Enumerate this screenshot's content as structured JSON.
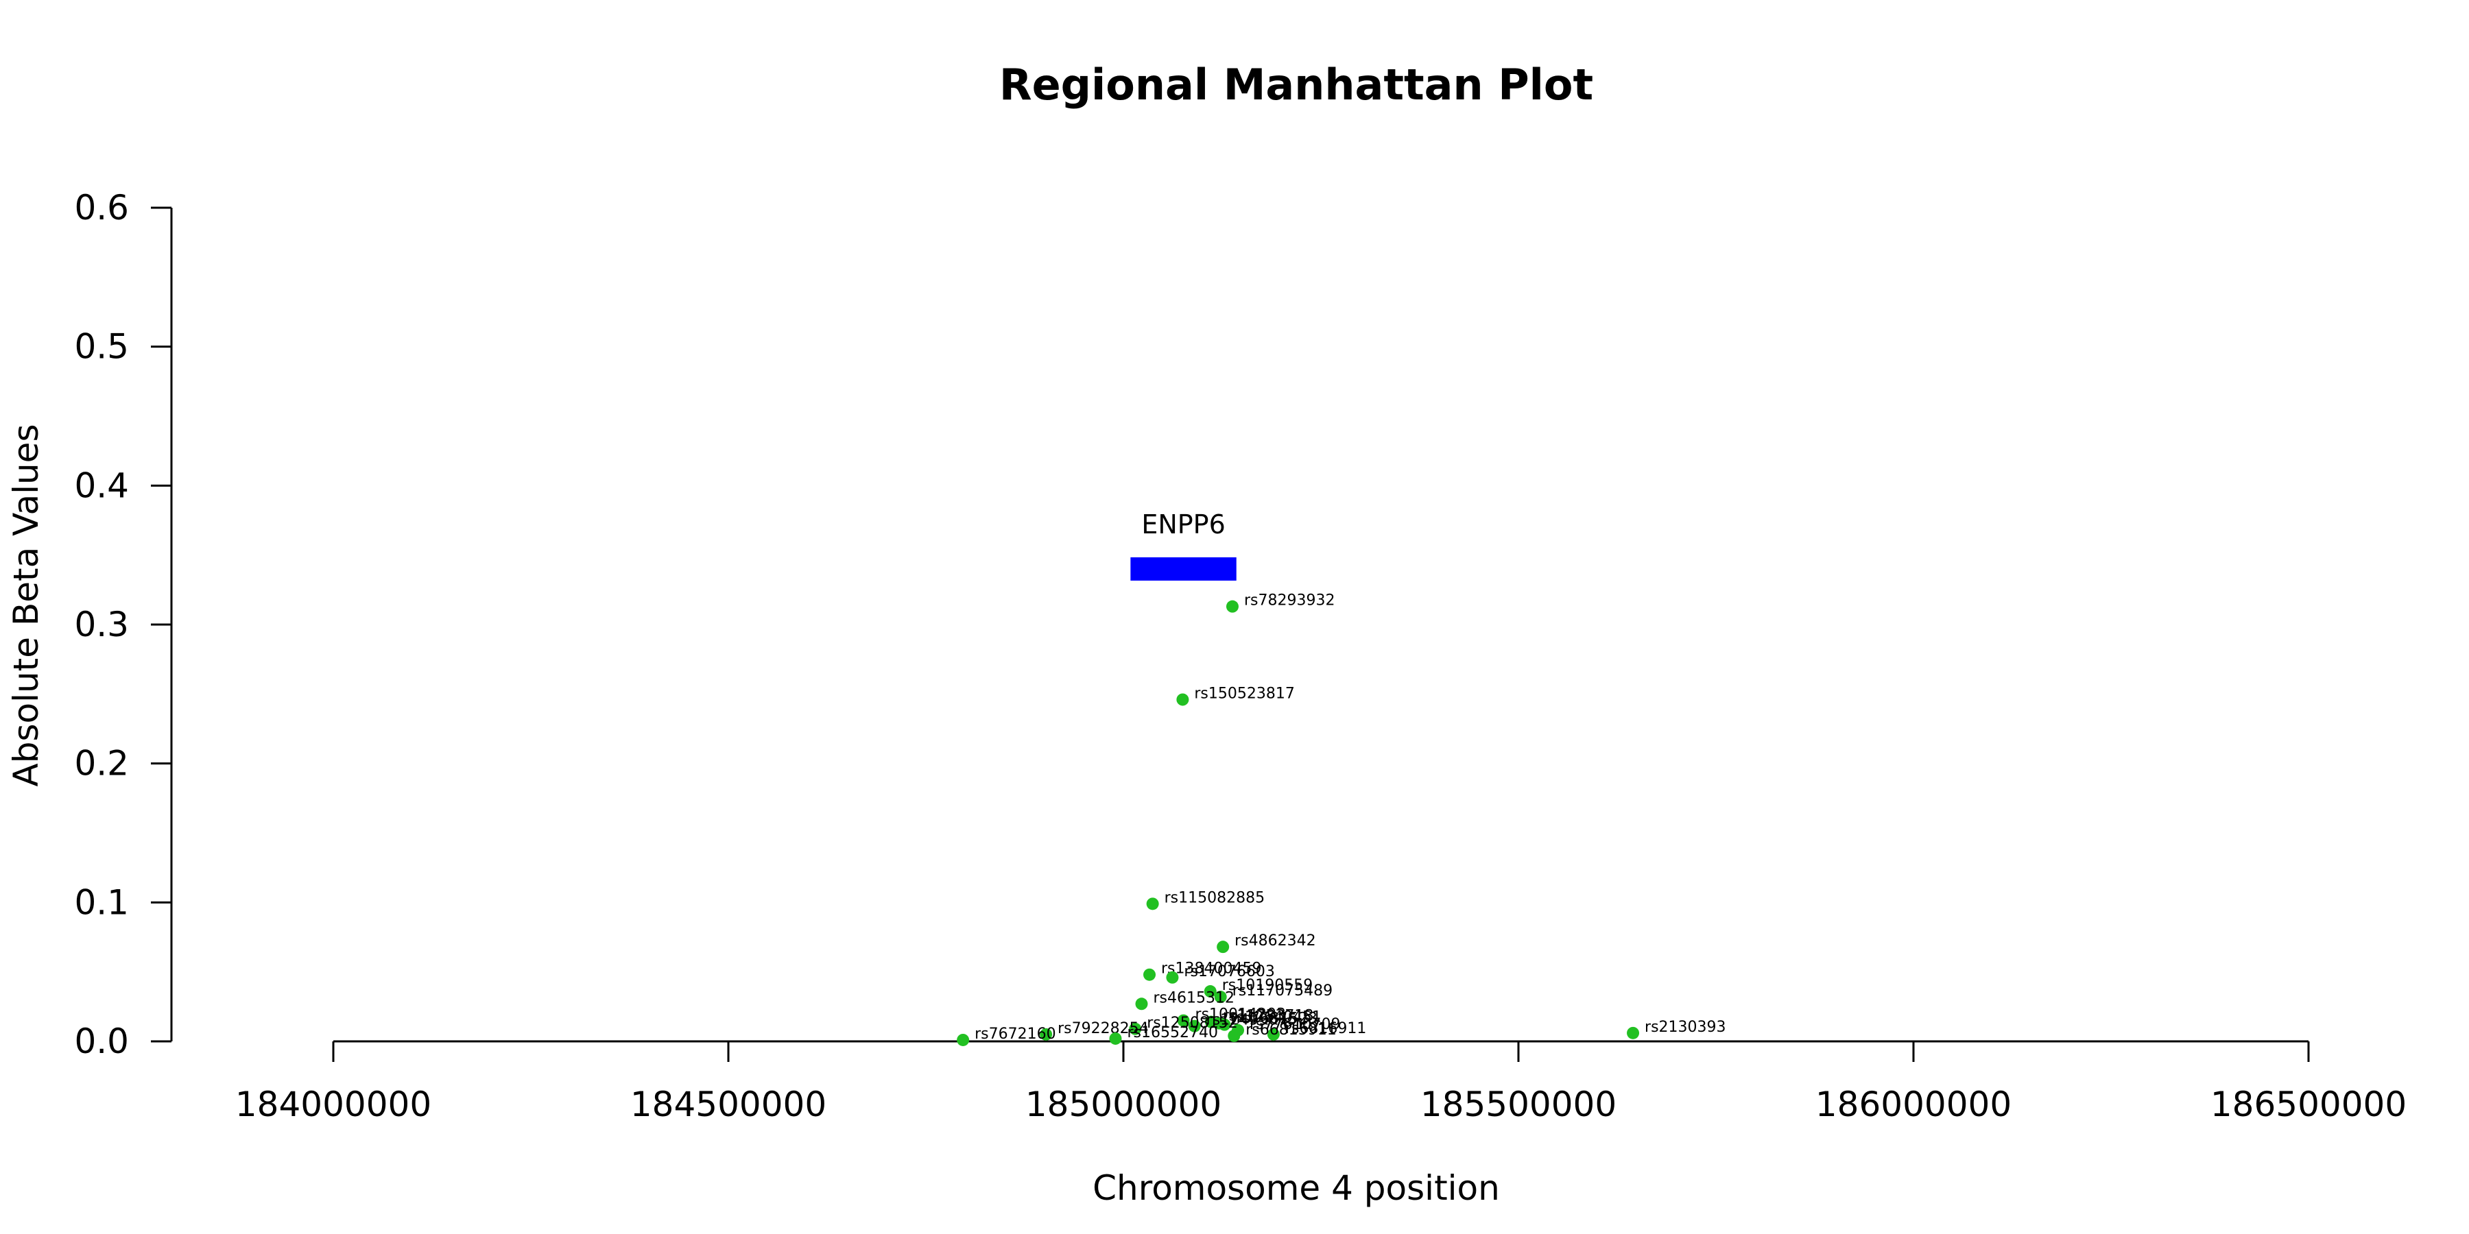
{
  "chart_data": {
    "type": "scatter",
    "title": "Regional Manhattan Plot",
    "xlabel": "Chromosome 4 position",
    "ylabel": "Absolute Beta Values",
    "xlim": [
      184000000,
      186500000
    ],
    "ylim": [
      0,
      0.6
    ],
    "x_ticks": [
      184000000,
      184500000,
      185000000,
      185500000,
      186000000,
      186500000
    ],
    "y_ticks": [
      0.0,
      0.1,
      0.2,
      0.3,
      0.4,
      0.5,
      0.6
    ],
    "point_color": "#22c022",
    "gene_color": "#0000ff",
    "genes": [
      {
        "name": "ENPP6",
        "start": 185009000,
        "end": 185143000,
        "y": 0.34
      }
    ],
    "points": [
      {
        "label": "rs78293932",
        "x": 185138000,
        "y": 0.313
      },
      {
        "label": "rs150523817",
        "x": 185075000,
        "y": 0.246
      },
      {
        "label": "rs115082885",
        "x": 185037000,
        "y": 0.099
      },
      {
        "label": "rs4862342",
        "x": 185126000,
        "y": 0.068
      },
      {
        "label": "rs138400459",
        "x": 185033000,
        "y": 0.048
      },
      {
        "label": "rs17076603",
        "x": 185062000,
        "y": 0.046
      },
      {
        "label": "rs10190559",
        "x": 185110000,
        "y": 0.036
      },
      {
        "label": "rs117075489",
        "x": 185123000,
        "y": 0.032
      },
      {
        "label": "rs4615312",
        "x": 185023000,
        "y": 0.027
      },
      {
        "label": "rs10014203",
        "x": 185076000,
        "y": 0.015
      },
      {
        "label": "rs11733718",
        "x": 185111000,
        "y": 0.014
      },
      {
        "label": "rs12640451",
        "x": 185121000,
        "y": 0.013
      },
      {
        "label": "rs7681523",
        "x": 185128000,
        "y": 0.012
      },
      {
        "label": "rs12499075",
        "x": 185090000,
        "y": 0.011
      },
      {
        "label": "rs77610709",
        "x": 185145000,
        "y": 0.008
      },
      {
        "label": "rs12508152",
        "x": 185015000,
        "y": 0.009
      },
      {
        "label": "rs2130393",
        "x": 185645000,
        "y": 0.006
      },
      {
        "label": "rs79228254",
        "x": 184902000,
        "y": 0.005
      },
      {
        "label": "rs6816911",
        "x": 185190000,
        "y": 0.005
      },
      {
        "label": "rs66815911",
        "x": 185140000,
        "y": 0.004
      },
      {
        "label": "rs16552740",
        "x": 184990000,
        "y": 0.002
      },
      {
        "label": "rs7672160",
        "x": 184797000,
        "y": 0.001
      }
    ]
  }
}
